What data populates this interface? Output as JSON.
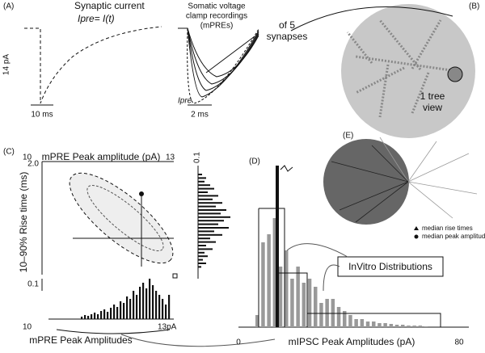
{
  "panel_a": {
    "label": "(A)",
    "title": "Synaptic current",
    "formula": "Ipre= I(t)",
    "y_scale": "14 pA",
    "x_scale": "10 ms",
    "recordings_title": [
      "Somatic voltage",
      "clamp recordings",
      "(mPREs)"
    ],
    "trace_label": "Ipre",
    "x_scale_2": "2 ms"
  },
  "panel_b": {
    "label": "(B)",
    "synapse_note": [
      "of 5",
      "synapses"
    ],
    "view_note": [
      "1 tree",
      "view"
    ]
  },
  "panel_c": {
    "label": "(C)",
    "x_title": "mPRE Peak amplitude (pA)",
    "x_min": "10",
    "x_max": "13",
    "side_tick": "0.1",
    "y_top": "2.0",
    "y_bottom": "0.1",
    "y_title": "10–90% Rise time (ms)",
    "bottom_min": "10",
    "bottom_max": "13pA",
    "bottom_title": "mPRE Peak Amplitudes",
    "bottom_histogram": [
      3,
      5,
      4,
      6,
      8,
      6,
      10,
      12,
      9,
      14,
      18,
      15,
      22,
      20,
      28,
      25,
      35,
      30,
      40,
      45,
      38,
      50,
      42,
      35,
      30,
      25,
      18,
      30
    ],
    "side_histogram": [
      5,
      10,
      8,
      15,
      20,
      12,
      25,
      18,
      30,
      22,
      35,
      28,
      40,
      32,
      25,
      38,
      20,
      30,
      15,
      22,
      10,
      18,
      8,
      12,
      6,
      10,
      4
    ]
  },
  "panel_d": {
    "label": "(D)",
    "x_min": "0",
    "x_max": "80",
    "x_title": "mIPSC Peak Amplitudes (pA)",
    "box_label": "InVitro Distributions",
    "histogram": [
      15,
      105,
      115,
      135,
      75,
      95,
      60,
      75,
      55,
      60,
      50,
      30,
      35,
      35,
      25,
      20,
      15,
      10,
      10,
      7,
      7,
      5,
      5,
      4,
      3,
      3,
      2,
      2,
      2,
      1
    ],
    "model_bar": 200
  },
  "panel_e": {
    "label": "(E)",
    "legend": [
      "median rise times",
      "median peak amplitudes"
    ]
  }
}
